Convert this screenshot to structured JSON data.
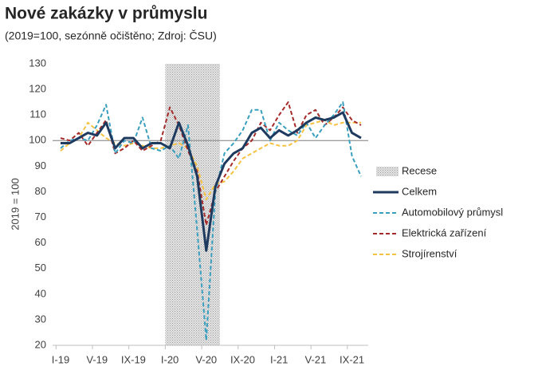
{
  "chart_data": {
    "type": "line",
    "title": "Nové zakázky v průmyslu",
    "subtitle": "(2019=100, sezónně očištěno; Zdroj: ČSU)",
    "y_label": "2019 = 100",
    "categories": [
      "I-19",
      null,
      null,
      null,
      "V-19",
      null,
      null,
      null,
      "IX-19",
      null,
      null,
      null,
      "I-20",
      null,
      null,
      null,
      "V-20",
      null,
      null,
      null,
      "IX-20",
      null,
      null,
      null,
      "I-21",
      null,
      null,
      null,
      "V-21",
      null,
      null,
      null,
      "IX-21",
      null
    ],
    "ylim": [
      20,
      130
    ],
    "yticks": [
      20,
      30,
      40,
      50,
      60,
      70,
      80,
      90,
      100,
      110,
      120,
      130
    ],
    "reference_line": 100,
    "recession": {
      "name": "Recese",
      "start_index": 12,
      "end_index": 17
    },
    "series": [
      {
        "name": "Celkem",
        "color": "#1f3a5f",
        "dash": false,
        "values": [
          99,
          99,
          101,
          103,
          102,
          107,
          97,
          101,
          101,
          97,
          99,
          99,
          97,
          107,
          98,
          86,
          57,
          82,
          91,
          95,
          97,
          103,
          105,
          101,
          104,
          102,
          104,
          107,
          109,
          108,
          109,
          111,
          103,
          101
        ]
      },
      {
        "name": "Automobilový průmysl",
        "color": "#3a9fbf",
        "dash": true,
        "values": [
          97,
          100,
          101,
          100,
          106,
          114,
          95,
          100,
          99,
          109,
          97,
          96,
          98,
          93,
          106,
          65,
          22,
          80,
          95,
          99,
          104,
          112,
          112,
          100,
          107,
          104,
          102,
          107,
          101,
          106,
          110,
          115,
          94,
          86
        ]
      },
      {
        "name": "Elektrická zařízení",
        "color": "#a52a2a",
        "dash": true,
        "values": [
          101,
          100,
          103,
          98,
          103,
          108,
          95,
          97,
          100,
          96,
          98,
          100,
          113,
          106,
          96,
          88,
          67,
          80,
          86,
          92,
          97,
          100,
          107,
          104,
          110,
          115,
          103,
          110,
          112,
          106,
          109,
          113,
          108,
          106
        ]
      },
      {
        "name": "Strojírenství",
        "color": "#f5c242",
        "dash": true,
        "values": [
          96,
          99,
          101,
          107,
          104,
          101,
          99,
          98,
          99,
          98,
          97,
          97,
          98,
          99,
          97,
          90,
          77,
          83,
          84,
          88,
          93,
          95,
          97,
          99,
          98,
          98,
          100,
          106,
          107,
          108,
          106,
          107,
          107,
          107
        ]
      }
    ]
  }
}
